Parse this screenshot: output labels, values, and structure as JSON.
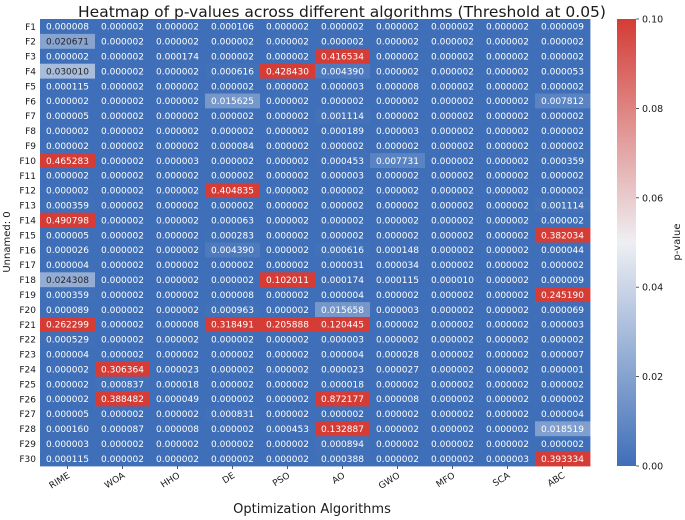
{
  "chart_data": {
    "type": "heatmap",
    "title": "Heatmap of p-values across different algorithms (Threshold at 0.05)",
    "xlabel": "Optimization Algorithms",
    "ylabel": "Unnamed: 0",
    "colorbar_label": "p-value",
    "colorbar_range": [
      0.0,
      0.1
    ],
    "colorbar_ticks": [
      "0.00",
      "0.02",
      "0.04",
      "0.06",
      "0.08",
      "0.10"
    ],
    "colormap": {
      "low": "#3f6fb8",
      "mid": "#eeeff3",
      "high": "#d43c35"
    },
    "columns": [
      "RIME",
      "WOA",
      "HHO",
      "DE",
      "PSO",
      "AO",
      "GWO",
      "MFO",
      "SCA",
      "ABC"
    ],
    "rows": [
      "F1",
      "F2",
      "F3",
      "F4",
      "F5",
      "F6",
      "F7",
      "F8",
      "F9",
      "F10",
      "F11",
      "F12",
      "F13",
      "F14",
      "F15",
      "F16",
      "F17",
      "F18",
      "F19",
      "F20",
      "F21",
      "F22",
      "F23",
      "F24",
      "F25",
      "F26",
      "F27",
      "F28",
      "F29",
      "F30"
    ],
    "values": [
      [
        "0.000008",
        "0.000002",
        "0.000002",
        "0.000106",
        "0.000002",
        "0.000002",
        "0.000002",
        "0.000002",
        "0.000002",
        "0.000009"
      ],
      [
        "0.020671",
        "0.000002",
        "0.000002",
        "0.000002",
        "0.000002",
        "0.000002",
        "0.000002",
        "0.000002",
        "0.000002",
        "0.000002"
      ],
      [
        "0.000002",
        "0.000002",
        "0.000174",
        "0.000002",
        "0.000002",
        "0.416534",
        "0.000002",
        "0.000002",
        "0.000002",
        "0.000002"
      ],
      [
        "0.030010",
        "0.000002",
        "0.000002",
        "0.000616",
        "0.428430",
        "0.004390",
        "0.000002",
        "0.000002",
        "0.000002",
        "0.000053"
      ],
      [
        "0.000115",
        "0.000002",
        "0.000002",
        "0.000002",
        "0.000002",
        "0.000003",
        "0.000008",
        "0.000002",
        "0.000002",
        "0.000002"
      ],
      [
        "0.000002",
        "0.000002",
        "0.000002",
        "0.015625",
        "0.000002",
        "0.000002",
        "0.000002",
        "0.000002",
        "0.000002",
        "0.007812"
      ],
      [
        "0.000005",
        "0.000002",
        "0.000002",
        "0.000002",
        "0.000002",
        "0.001114",
        "0.000002",
        "0.000002",
        "0.000002",
        "0.000002"
      ],
      [
        "0.000002",
        "0.000002",
        "0.000002",
        "0.000002",
        "0.000002",
        "0.000189",
        "0.000003",
        "0.000002",
        "0.000002",
        "0.000002"
      ],
      [
        "0.000002",
        "0.000002",
        "0.000002",
        "0.000084",
        "0.000002",
        "0.000002",
        "0.000002",
        "0.000002",
        "0.000002",
        "0.000002"
      ],
      [
        "0.465283",
        "0.000002",
        "0.000003",
        "0.000002",
        "0.000002",
        "0.000453",
        "0.007731",
        "0.000002",
        "0.000002",
        "0.000359"
      ],
      [
        "0.000002",
        "0.000002",
        "0.000002",
        "0.000002",
        "0.000002",
        "0.000003",
        "0.000002",
        "0.000002",
        "0.000002",
        "0.000002"
      ],
      [
        "0.000002",
        "0.000002",
        "0.000002",
        "0.404835",
        "0.000002",
        "0.000002",
        "0.000002",
        "0.000002",
        "0.000002",
        "0.000002"
      ],
      [
        "0.000359",
        "0.000002",
        "0.000002",
        "0.000002",
        "0.000002",
        "0.000002",
        "0.000002",
        "0.000002",
        "0.000002",
        "0.001114"
      ],
      [
        "0.490798",
        "0.000002",
        "0.000002",
        "0.000063",
        "0.000002",
        "0.000002",
        "0.000002",
        "0.000002",
        "0.000002",
        "0.000002"
      ],
      [
        "0.000005",
        "0.000002",
        "0.000002",
        "0.000283",
        "0.000002",
        "0.000002",
        "0.000002",
        "0.000002",
        "0.000002",
        "0.382034"
      ],
      [
        "0.000026",
        "0.000002",
        "0.000002",
        "0.004390",
        "0.000002",
        "0.000616",
        "0.000148",
        "0.000002",
        "0.000002",
        "0.000044"
      ],
      [
        "0.000004",
        "0.000002",
        "0.000002",
        "0.000002",
        "0.000002",
        "0.000031",
        "0.000034",
        "0.000002",
        "0.000002",
        "0.000002"
      ],
      [
        "0.024308",
        "0.000002",
        "0.000002",
        "0.000002",
        "0.102011",
        "0.000174",
        "0.000115",
        "0.000010",
        "0.000002",
        "0.000009"
      ],
      [
        "0.000359",
        "0.000002",
        "0.000002",
        "0.000008",
        "0.000002",
        "0.000004",
        "0.000002",
        "0.000002",
        "0.000002",
        "0.245190"
      ],
      [
        "0.000089",
        "0.000002",
        "0.000002",
        "0.000963",
        "0.000002",
        "0.015658",
        "0.000003",
        "0.000002",
        "0.000002",
        "0.000069"
      ],
      [
        "0.262299",
        "0.000002",
        "0.000008",
        "0.318491",
        "0.205888",
        "0.120445",
        "0.000002",
        "0.000002",
        "0.000002",
        "0.000003"
      ],
      [
        "0.000529",
        "0.000002",
        "0.000002",
        "0.000002",
        "0.000002",
        "0.000003",
        "0.000002",
        "0.000002",
        "0.000002",
        "0.000002"
      ],
      [
        "0.000004",
        "0.000002",
        "0.000002",
        "0.000002",
        "0.000002",
        "0.000004",
        "0.000028",
        "0.000002",
        "0.000002",
        "0.000007"
      ],
      [
        "0.000002",
        "0.306364",
        "0.000023",
        "0.000002",
        "0.000002",
        "0.000023",
        "0.000027",
        "0.000002",
        "0.000002",
        "0.000001"
      ],
      [
        "0.000002",
        "0.000837",
        "0.000018",
        "0.000002",
        "0.000002",
        "0.000018",
        "0.000002",
        "0.000002",
        "0.000002",
        "0.000002"
      ],
      [
        "0.000002",
        "0.388482",
        "0.000049",
        "0.000002",
        "0.000002",
        "0.872177",
        "0.000008",
        "0.000002",
        "0.000002",
        "0.000002"
      ],
      [
        "0.000005",
        "0.000002",
        "0.000002",
        "0.000831",
        "0.000002",
        "0.000002",
        "0.000002",
        "0.000002",
        "0.000002",
        "0.000004"
      ],
      [
        "0.000160",
        "0.000087",
        "0.000008",
        "0.000002",
        "0.000453",
        "0.132887",
        "0.000002",
        "0.000002",
        "0.000002",
        "0.018519"
      ],
      [
        "0.000003",
        "0.000002",
        "0.000002",
        "0.000002",
        "0.000002",
        "0.000894",
        "0.000002",
        "0.000002",
        "0.000002",
        "0.000002"
      ],
      [
        "0.000115",
        "0.000002",
        "0.000002",
        "0.000002",
        "0.000002",
        "0.000388",
        "0.000002",
        "0.000002",
        "0.000003",
        "0.393334"
      ]
    ]
  }
}
